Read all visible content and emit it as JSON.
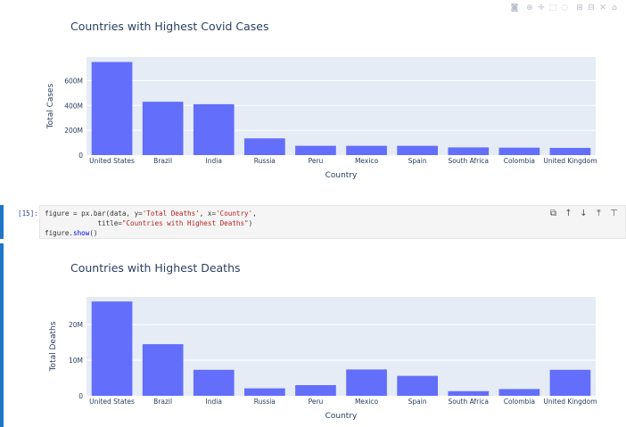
{
  "modebar": {
    "icons": [
      "camera-icon",
      "zoom-icon",
      "pan-icon",
      "box-select-icon",
      "lasso-icon",
      "zoom-in-icon",
      "zoom-out-icon",
      "autoscale-icon",
      "home-icon"
    ],
    "glyphs": [
      "◙",
      "⊕",
      "✛",
      "⬚",
      "◌",
      "⊞",
      "⊟",
      "✕",
      "⌂"
    ]
  },
  "cell": {
    "prompt": "[15]:",
    "code_line1_a": "figure = px.bar(data, y=",
    "code_line1_s1": "'Total Deaths'",
    "code_line1_b": ", x=",
    "code_line1_s2": "'Country'",
    "code_line1_c": ",",
    "code_line2_a": "             title=",
    "code_line2_s": "\"Countries with Highest Deaths\"",
    "code_line2_b": ")",
    "code_line3_a": "figure.",
    "code_line3_f": "show",
    "code_line3_b": "()",
    "tools": [
      "⧉",
      "↑",
      "↓",
      "⤒",
      "⊤"
    ],
    "tool_names": [
      "copy-icon",
      "move-up-icon",
      "move-down-icon",
      "insert-above-icon",
      "insert-below-icon"
    ]
  },
  "chart_data": [
    {
      "type": "bar",
      "title": "Countries with Highest Covid Cases",
      "xlabel": "Country",
      "ylabel": "Total Cases",
      "categories": [
        "United States",
        "Brazil",
        "India",
        "Russia",
        "Peru",
        "Mexico",
        "Spain",
        "South Africa",
        "Colombia",
        "United Kingdom"
      ],
      "values": [
        750000000,
        430000000,
        410000000,
        135000000,
        75000000,
        75000000,
        75000000,
        62000000,
        60000000,
        58000000
      ],
      "ylim": [
        0,
        790000000
      ],
      "yticks": [
        0,
        200000000,
        400000000,
        600000000
      ],
      "ytick_labels": [
        "0",
        "200M",
        "400M",
        "600M"
      ],
      "bar_color": "#636efa",
      "plot_bg": "#e5ecf6",
      "grid": true
    },
    {
      "type": "bar",
      "title": "Countries with Highest Deaths",
      "xlabel": "Country",
      "ylabel": "Total Deaths",
      "categories": [
        "United States",
        "Brazil",
        "India",
        "Russia",
        "Peru",
        "Mexico",
        "Spain",
        "South Africa",
        "Colombia",
        "United Kingdom"
      ],
      "values": [
        26500000,
        14500000,
        7300000,
        2100000,
        3000000,
        7400000,
        5600000,
        1300000,
        1900000,
        7300000
      ],
      "ylim": [
        0,
        27800000
      ],
      "yticks": [
        0,
        10000000,
        20000000
      ],
      "ytick_labels": [
        "0",
        "10M",
        "20M"
      ],
      "bar_color": "#636efa",
      "plot_bg": "#e5ecf6",
      "grid": true
    }
  ]
}
